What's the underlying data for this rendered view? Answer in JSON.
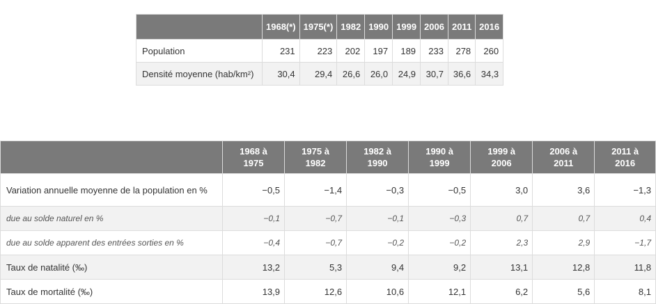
{
  "population_table": {
    "years": [
      "1968(*)",
      "1975(*)",
      "1982",
      "1990",
      "1999",
      "2006",
      "2011",
      "2016"
    ],
    "rows": [
      {
        "label": "Population",
        "values": [
          "231",
          "223",
          "202",
          "197",
          "189",
          "233",
          "278",
          "260"
        ]
      },
      {
        "label": "Densité moyenne (hab/km²)",
        "values": [
          "30,4",
          "29,4",
          "26,6",
          "26,0",
          "24,9",
          "30,7",
          "36,6",
          "34,3"
        ]
      }
    ]
  },
  "variation_table": {
    "periods": [
      {
        "from": "1968 à",
        "to": "1975"
      },
      {
        "from": "1975 à",
        "to": "1982"
      },
      {
        "from": "1982 à",
        "to": "1990"
      },
      {
        "from": "1990 à",
        "to": "1999"
      },
      {
        "from": "1999 à",
        "to": "2006"
      },
      {
        "from": "2006 à",
        "to": "2011"
      },
      {
        "from": "2011 à",
        "to": "2016"
      }
    ],
    "rows": [
      {
        "label": "Variation annuelle moyenne de la population en %",
        "values": [
          "−0,5",
          "−1,4",
          "−0,3",
          "−0,5",
          "3,0",
          "3,6",
          "−1,3"
        ]
      },
      {
        "label": "due au solde naturel en %",
        "values": [
          "−0,1",
          "−0,7",
          "−0,1",
          "−0,3",
          "0,7",
          "0,7",
          "0,4"
        ]
      },
      {
        "label": "due au solde apparent des entrées sorties en %",
        "values": [
          "−0,4",
          "−0,7",
          "−0,2",
          "−0,2",
          "2,3",
          "2,9",
          "−1,7"
        ]
      },
      {
        "label": "Taux de natalité (‰)",
        "values": [
          "13,2",
          "5,3",
          "9,4",
          "9,2",
          "13,1",
          "12,8",
          "11,8"
        ]
      },
      {
        "label": "Taux de mortalité (‰)",
        "values": [
          "13,9",
          "12,6",
          "10,6",
          "12,1",
          "6,2",
          "5,6",
          "8,1"
        ]
      }
    ]
  }
}
